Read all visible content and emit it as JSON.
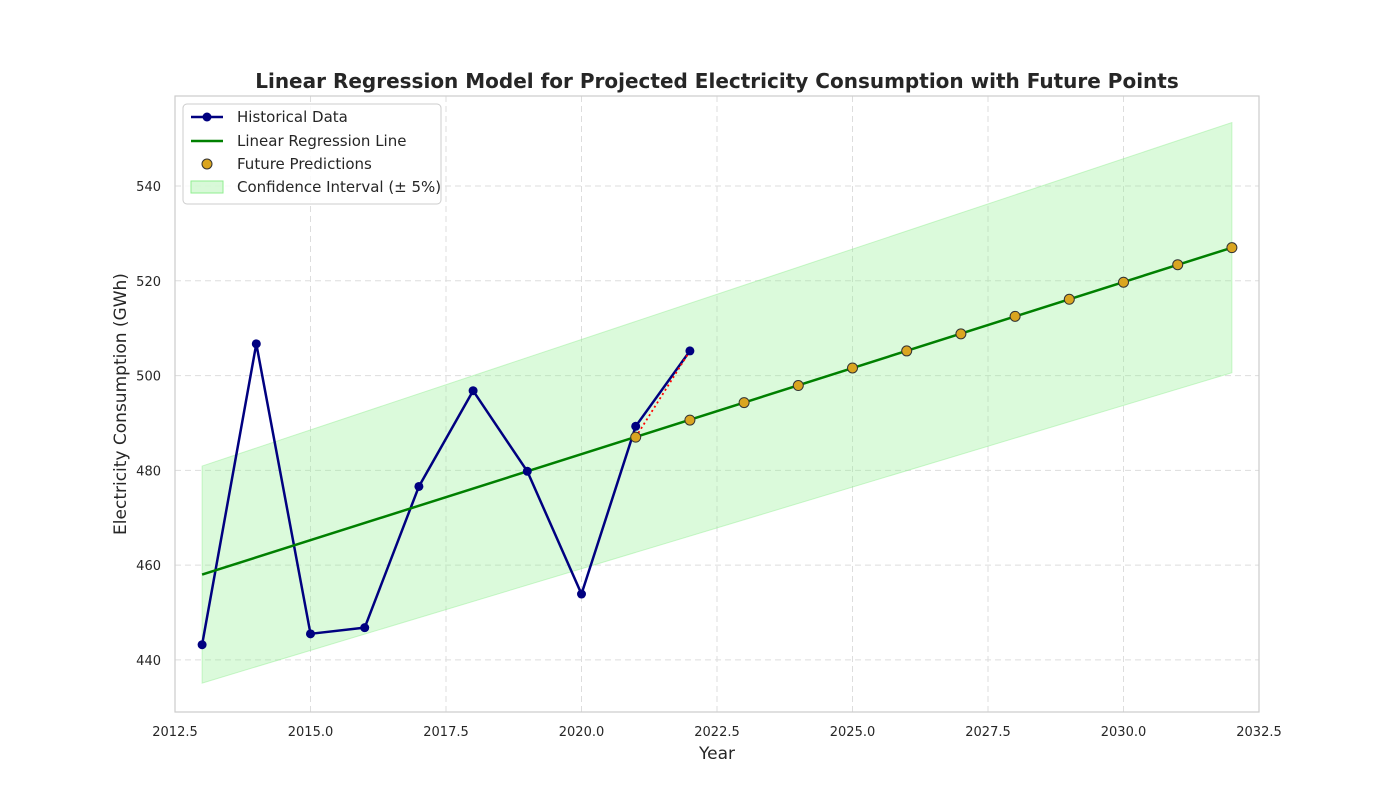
{
  "chart_data": {
    "type": "line",
    "title": "Linear Regression Model for Projected Electricity Consumption with Future Points",
    "xlabel": "Year",
    "ylabel": "Electricity Consumption (GWh)",
    "xlim": [
      2012.5,
      2032.5
    ],
    "ylim": [
      429,
      559
    ],
    "x_ticks": [
      "2012.5",
      "2015.0",
      "2017.5",
      "2020.0",
      "2022.5",
      "2025.0",
      "2027.5",
      "2030.0",
      "2032.5"
    ],
    "y_ticks": [
      "440",
      "460",
      "480",
      "500",
      "520",
      "540"
    ],
    "grid": true,
    "legend_position": "upper-left",
    "series": [
      {
        "name": "Historical Data",
        "style": "line-markers",
        "color": "#000080",
        "x": [
          2013,
          2014,
          2015,
          2016,
          2017,
          2018,
          2019,
          2020,
          2021,
          2022
        ],
        "y": [
          443.2,
          506.7,
          445.5,
          446.8,
          476.6,
          496.8,
          479.8,
          453.9,
          489.3,
          505.2
        ]
      },
      {
        "name": "Linear Regression Line",
        "style": "line",
        "color": "#008000",
        "x": [
          2013,
          2032
        ],
        "y": [
          458.0,
          527.0
        ]
      },
      {
        "name": "Future Predictions",
        "style": "markers",
        "color": "#DAA520",
        "edge_color": "#333333",
        "x": [
          2021,
          2022,
          2023,
          2024,
          2025,
          2026,
          2027,
          2028,
          2029,
          2030,
          2031,
          2032
        ],
        "y": [
          487.0,
          490.6,
          494.3,
          497.9,
          501.6,
          505.2,
          508.8,
          512.5,
          516.1,
          519.7,
          523.4,
          527.0
        ]
      },
      {
        "name": "Confidence Interval (± 5%)",
        "style": "band",
        "color": "#90EE90",
        "x": [
          2013,
          2032
        ],
        "lower": [
          435.1,
          500.6
        ],
        "upper": [
          480.9,
          553.4
        ]
      }
    ],
    "connector": {
      "style": "dotted",
      "color": "#FF0000",
      "x": [
        2021,
        2022
      ],
      "y": [
        487.0,
        505.2
      ]
    }
  }
}
